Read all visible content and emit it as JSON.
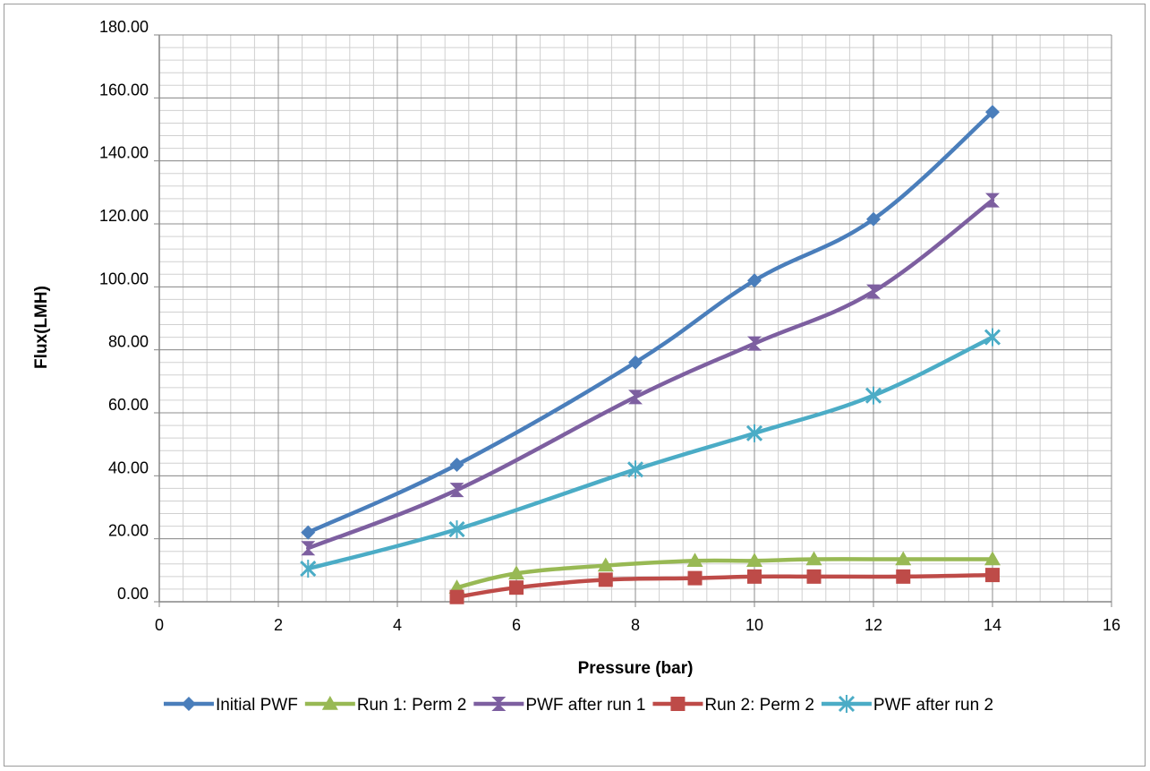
{
  "chart_data": {
    "type": "line",
    "title": "",
    "xlabel": "Pressure (bar)",
    "ylabel": "Flux(LMH)",
    "xlim": [
      0,
      16
    ],
    "ylim": [
      0,
      180
    ],
    "x_ticks": [
      0,
      2,
      4,
      6,
      8,
      10,
      12,
      14,
      16
    ],
    "y_ticks": [
      0,
      20,
      40,
      60,
      80,
      100,
      120,
      140,
      160,
      180
    ],
    "x_tick_labels": [
      "0",
      "2",
      "4",
      "6",
      "8",
      "10",
      "12",
      "14",
      "16"
    ],
    "y_tick_labels": [
      "0.00",
      "20.00",
      "40.00",
      "60.00",
      "80.00",
      "100.00",
      "120.00",
      "140.00",
      "160.00",
      "180.00"
    ],
    "grid": {
      "major": true,
      "minor_y": true,
      "minor_x": true
    },
    "legend_position": "bottom",
    "series": [
      {
        "name": "Initial PWF",
        "color": "#4a7ebb",
        "marker": "diamond",
        "x": [
          2.5,
          5,
          8,
          10,
          12,
          14
        ],
        "y": [
          22,
          43.5,
          76,
          102,
          121.5,
          155.5
        ]
      },
      {
        "name": "Run 1: Perm 2",
        "color": "#98b954",
        "marker": "triangle",
        "x": [
          5,
          6,
          7.5,
          9,
          10,
          11,
          12.5,
          14
        ],
        "y": [
          4.5,
          9,
          11.5,
          13,
          13,
          13.5,
          13.5,
          13.5
        ]
      },
      {
        "name": "PWF after run 1",
        "color": "#7d5fa0",
        "marker": "hourglass",
        "x": [
          2.5,
          5,
          8,
          10,
          12,
          14
        ],
        "y": [
          17,
          35.5,
          65,
          82,
          98.5,
          127.5
        ]
      },
      {
        "name": "Run 2: Perm 2",
        "color": "#be4b48",
        "marker": "square",
        "x": [
          5,
          6,
          7.5,
          9,
          10,
          11,
          12.5,
          14
        ],
        "y": [
          1.5,
          4.5,
          7,
          7.5,
          8,
          8,
          8,
          8.5
        ]
      },
      {
        "name": "PWF after run 2",
        "color": "#4bacc6",
        "marker": "star",
        "x": [
          2.5,
          5,
          8,
          10,
          12,
          14
        ],
        "y": [
          10.5,
          23,
          42,
          53.5,
          65.5,
          84
        ]
      }
    ]
  }
}
